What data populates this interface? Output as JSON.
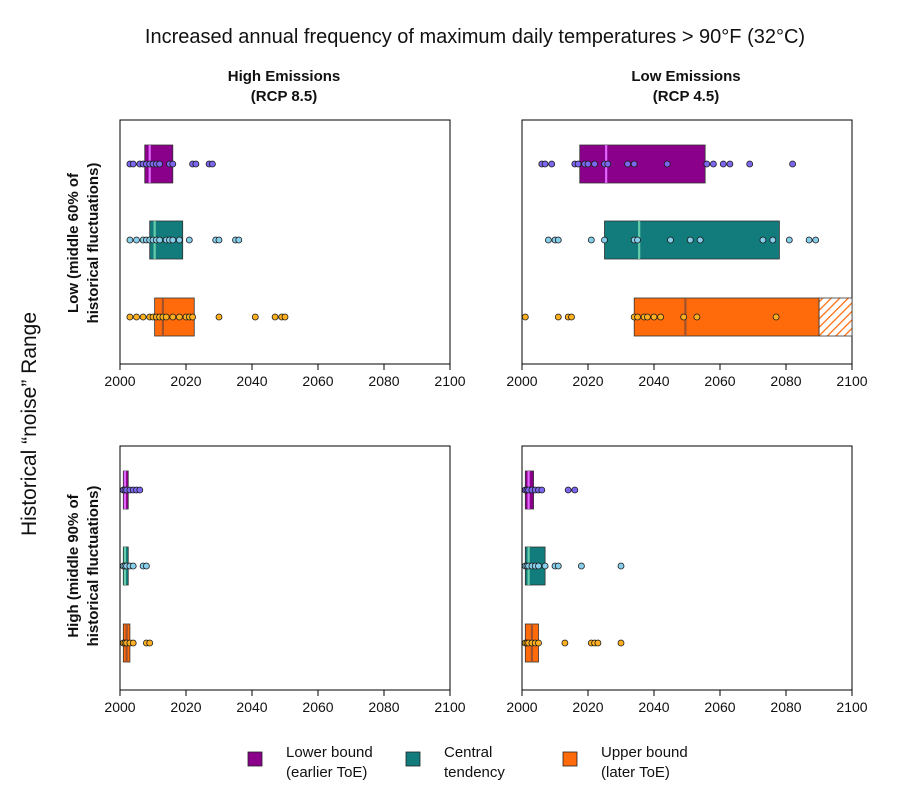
{
  "chart_data": {
    "type": "box-dot",
    "title": "Increased annual frequency of maximum daily temperatures > 90°F (32°C)",
    "y_label": "Historical “noise” Range",
    "columns": [
      {
        "title_line1": "High Emissions",
        "title_line2": "(RCP 8.5)"
      },
      {
        "title_line1": "Low Emissions",
        "title_line2": "(RCP 4.5)"
      }
    ],
    "rows": [
      {
        "label_line1": "Low (middle 60% of",
        "label_line2": "historical fluctuations)"
      },
      {
        "label_line1": "High (middle 90% of",
        "label_line2": "historical fluctuations)"
      }
    ],
    "xlim": [
      2000,
      2100
    ],
    "xticks": [
      "2000",
      "2020",
      "2040",
      "2060",
      "2080",
      "2100"
    ],
    "series_colors": {
      "lower": {
        "fill": "#8b008b",
        "median": "#e066ff",
        "dot": "#7b68ee"
      },
      "central": {
        "fill": "#127c7c",
        "median": "#66cdaa",
        "dot": "#87ceeb"
      },
      "upper": {
        "fill": "#ff6a0a",
        "median": "#a0522d",
        "dot": "#ffb020"
      }
    },
    "legend": [
      {
        "key": "lower",
        "line1": "Lower bound",
        "line2": "(earlier ToE)"
      },
      {
        "key": "central",
        "line1": "Central",
        "line2": "tendency"
      },
      {
        "key": "upper",
        "line1": "Upper bound",
        "line2": "(later ToE)"
      }
    ],
    "panels": [
      {
        "row": 0,
        "col": 0,
        "series": [
          {
            "key": "lower",
            "q1": 2007.5,
            "median": 2009,
            "q3": 2016,
            "points": [
              2003,
              2004,
              2006,
              2007,
              2008,
              2009,
              2010,
              2011,
              2012,
              2015,
              2016,
              2022,
              2023,
              2027,
              2028
            ]
          },
          {
            "key": "central",
            "q1": 2009,
            "median": 2010.5,
            "q3": 2019,
            "points": [
              2003,
              2005,
              2007,
              2008,
              2009,
              2010,
              2011,
              2012,
              2014,
              2015,
              2016,
              2018,
              2021,
              2029,
              2030,
              2035,
              2036
            ]
          },
          {
            "key": "upper",
            "q1": 2010.5,
            "median": 2013,
            "q3": 2022.5,
            "points": [
              2003,
              2005,
              2007,
              2009,
              2010,
              2011,
              2012,
              2013,
              2014,
              2016,
              2018,
              2020,
              2021,
              2022,
              2030,
              2041,
              2047,
              2049,
              2050
            ]
          }
        ]
      },
      {
        "row": 0,
        "col": 1,
        "series": [
          {
            "key": "lower",
            "q1": 2017.5,
            "median": 2025.5,
            "q3": 2055.5,
            "points": [
              2006,
              2007,
              2009,
              2016,
              2017,
              2019,
              2020,
              2022,
              2025,
              2026,
              2032,
              2034,
              2044,
              2056,
              2058,
              2061,
              2063,
              2069,
              2082
            ]
          },
          {
            "key": "central",
            "q1": 2025,
            "median": 2035.5,
            "q3": 2078,
            "points": [
              2008,
              2010,
              2011,
              2021,
              2025,
              2034,
              2035,
              2045,
              2051,
              2054,
              2073,
              2076,
              2081,
              2087,
              2089
            ]
          },
          {
            "key": "upper",
            "q1": 2034,
            "median": 2049.5,
            "q3": 2090,
            "hatch_to": 2100,
            "points": [
              2001,
              2011,
              2014,
              2015,
              2034,
              2035,
              2037,
              2038,
              2040,
              2042,
              2049,
              2053,
              2077
            ]
          }
        ]
      },
      {
        "row": 1,
        "col": 0,
        "series": [
          {
            "key": "lower",
            "q1": 2001,
            "median": 2001.5,
            "q3": 2002.5,
            "points": [
              2001,
              2001.5,
              2002,
              2003,
              2004,
              2005,
              2006
            ]
          },
          {
            "key": "central",
            "q1": 2001,
            "median": 2001.5,
            "q3": 2002.5,
            "points": [
              2001,
              2001.5,
              2002,
              2003,
              2004,
              2007,
              2008
            ]
          },
          {
            "key": "upper",
            "q1": 2001,
            "median": 2002,
            "q3": 2003,
            "points": [
              2001,
              2001.5,
              2002,
              2003,
              2004,
              2008,
              2009
            ]
          }
        ]
      },
      {
        "row": 1,
        "col": 1,
        "series": [
          {
            "key": "lower",
            "q1": 2001,
            "median": 2002,
            "q3": 2003.5,
            "points": [
              2001,
              2001.5,
              2002,
              2003,
              2004,
              2005,
              2006,
              2014,
              2016
            ]
          },
          {
            "key": "central",
            "q1": 2001,
            "median": 2002,
            "q3": 2007,
            "points": [
              2001,
              2001.5,
              2002,
              2003,
              2004,
              2005,
              2007,
              2010,
              2011,
              2018,
              2030
            ]
          },
          {
            "key": "upper",
            "q1": 2001,
            "median": 2003,
            "q3": 2005,
            "points": [
              2001,
              2001.5,
              2002,
              2003,
              2004,
              2005,
              2013,
              2021,
              2022,
              2023,
              2030
            ]
          }
        ]
      }
    ]
  }
}
